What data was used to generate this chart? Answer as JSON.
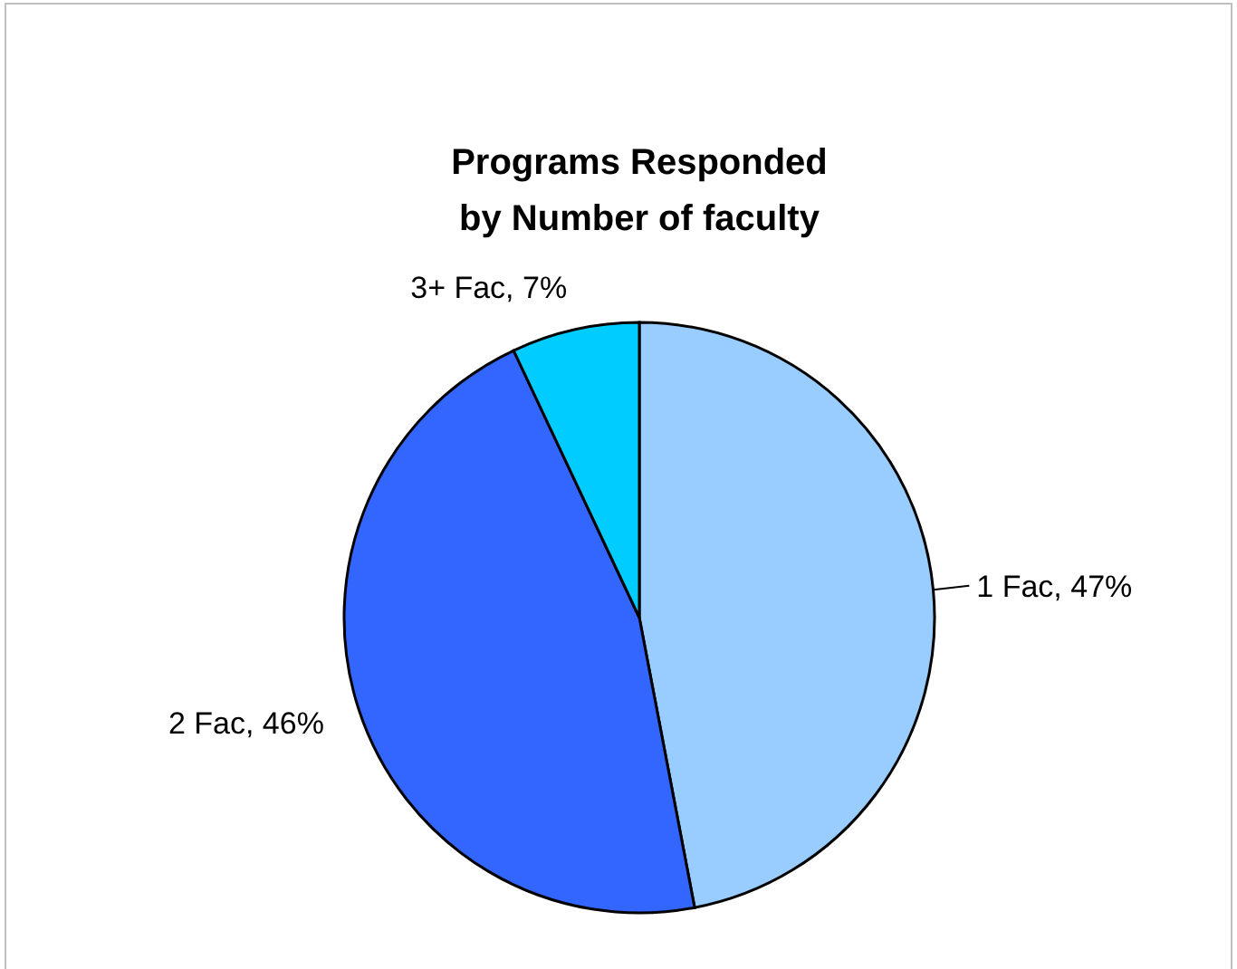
{
  "chart_data": {
    "type": "pie",
    "title": "Programs Responded\nby Number of faculty",
    "categories": [
      "1 Fac",
      "2 Fac",
      "3+ Fac"
    ],
    "values": [
      47,
      46,
      7
    ],
    "value_labels": [
      "47%",
      "46%",
      "7%"
    ],
    "colors": [
      "#99ccff",
      "#3366ff",
      "#00ccff"
    ]
  }
}
